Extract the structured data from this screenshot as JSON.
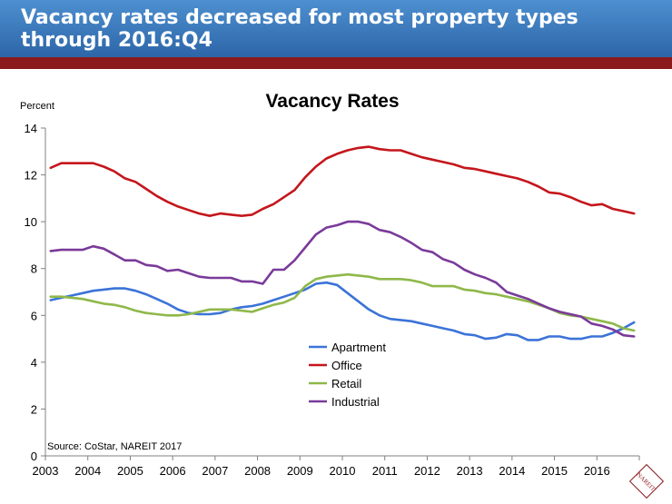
{
  "header": {
    "title": "Vacancy rates decreased for most property types through 2016:Q4"
  },
  "logo": {
    "text": "NAREIT"
  },
  "chart_data": {
    "type": "line",
    "title": "Vacancy Rates",
    "ylabel": "Percent",
    "xlabel": "",
    "ylim": [
      0,
      14
    ],
    "yticks": [
      0,
      2,
      4,
      6,
      8,
      10,
      12,
      14
    ],
    "xlim": [
      2003,
      2017
    ],
    "xticks": [
      "2003",
      "2004",
      "2005",
      "2006",
      "2007",
      "2008",
      "2009",
      "2010",
      "2011",
      "2012",
      "2013",
      "2014",
      "2015",
      "2016"
    ],
    "grid": false,
    "legend": "center",
    "source_note": "Source: CoStar, NAREIT 2017",
    "colors": {
      "Apartment": "#3b73d8",
      "Office": "#c4161c",
      "Retail": "#8fb84a",
      "Industrial": "#7a3a9a"
    },
    "x": [
      "2003Q1",
      "2003Q2",
      "2003Q3",
      "2003Q4",
      "2004Q1",
      "2004Q2",
      "2004Q3",
      "2004Q4",
      "2005Q1",
      "2005Q2",
      "2005Q3",
      "2005Q4",
      "2006Q1",
      "2006Q2",
      "2006Q3",
      "2006Q4",
      "2007Q1",
      "2007Q2",
      "2007Q3",
      "2007Q4",
      "2008Q1",
      "2008Q2",
      "2008Q3",
      "2008Q4",
      "2009Q1",
      "2009Q2",
      "2009Q3",
      "2009Q4",
      "2010Q1",
      "2010Q2",
      "2010Q3",
      "2010Q4",
      "2011Q1",
      "2011Q2",
      "2011Q3",
      "2011Q4",
      "2012Q1",
      "2012Q2",
      "2012Q3",
      "2012Q4",
      "2013Q1",
      "2013Q2",
      "2013Q3",
      "2013Q4",
      "2014Q1",
      "2014Q2",
      "2014Q3",
      "2014Q4",
      "2015Q1",
      "2015Q2",
      "2015Q3",
      "2015Q4",
      "2016Q1",
      "2016Q2",
      "2016Q3",
      "2016Q4"
    ],
    "series": [
      {
        "name": "Apartment",
        "values": [
          6.65,
          6.75,
          6.85,
          6.95,
          7.05,
          7.1,
          7.15,
          7.15,
          7.05,
          6.9,
          6.7,
          6.5,
          6.25,
          6.1,
          6.05,
          6.05,
          6.1,
          6.25,
          6.35,
          6.4,
          6.5,
          6.65,
          6.8,
          6.95,
          7.1,
          7.35,
          7.4,
          7.3,
          6.95,
          6.6,
          6.25,
          6.0,
          5.85,
          5.8,
          5.75,
          5.65,
          5.55,
          5.45,
          5.35,
          5.2,
          5.15,
          5.0,
          5.05,
          5.2,
          5.15,
          4.95,
          4.95,
          5.1,
          5.1,
          5.0,
          5.0,
          5.1,
          5.1,
          5.25,
          5.45,
          5.7
        ]
      },
      {
        "name": "Office",
        "values": [
          12.3,
          12.5,
          12.5,
          12.5,
          12.5,
          12.35,
          12.15,
          11.85,
          11.7,
          11.4,
          11.1,
          10.85,
          10.65,
          10.5,
          10.35,
          10.25,
          10.35,
          10.3,
          10.25,
          10.3,
          10.55,
          10.75,
          11.05,
          11.35,
          11.9,
          12.35,
          12.7,
          12.9,
          13.05,
          13.15,
          13.2,
          13.1,
          13.05,
          13.05,
          12.9,
          12.75,
          12.65,
          12.55,
          12.45,
          12.3,
          12.25,
          12.15,
          12.05,
          11.95,
          11.85,
          11.7,
          11.5,
          11.25,
          11.2,
          11.05,
          10.85,
          10.7,
          10.75,
          10.55,
          10.45,
          10.35
        ]
      },
      {
        "name": "Retail",
        "values": [
          6.8,
          6.8,
          6.75,
          6.7,
          6.6,
          6.5,
          6.45,
          6.35,
          6.2,
          6.1,
          6.05,
          6.0,
          6.0,
          6.05,
          6.15,
          6.25,
          6.25,
          6.25,
          6.2,
          6.15,
          6.3,
          6.45,
          6.55,
          6.75,
          7.25,
          7.55,
          7.65,
          7.7,
          7.75,
          7.7,
          7.65,
          7.55,
          7.55,
          7.55,
          7.5,
          7.4,
          7.25,
          7.25,
          7.25,
          7.1,
          7.05,
          6.95,
          6.9,
          6.8,
          6.7,
          6.6,
          6.45,
          6.3,
          6.1,
          6.0,
          5.95,
          5.85,
          5.75,
          5.65,
          5.45,
          5.35
        ]
      },
      {
        "name": "Industrial",
        "values": [
          8.75,
          8.8,
          8.8,
          8.8,
          8.95,
          8.85,
          8.6,
          8.35,
          8.35,
          8.15,
          8.1,
          7.9,
          7.95,
          7.8,
          7.65,
          7.6,
          7.6,
          7.6,
          7.45,
          7.45,
          7.35,
          7.95,
          7.95,
          8.35,
          8.9,
          9.45,
          9.75,
          9.85,
          10.0,
          10.0,
          9.9,
          9.65,
          9.55,
          9.35,
          9.1,
          8.8,
          8.7,
          8.4,
          8.25,
          7.95,
          7.75,
          7.6,
          7.4,
          7.0,
          6.85,
          6.7,
          6.5,
          6.3,
          6.15,
          6.05,
          5.95,
          5.65,
          5.55,
          5.4,
          5.15,
          5.1
        ]
      }
    ]
  }
}
